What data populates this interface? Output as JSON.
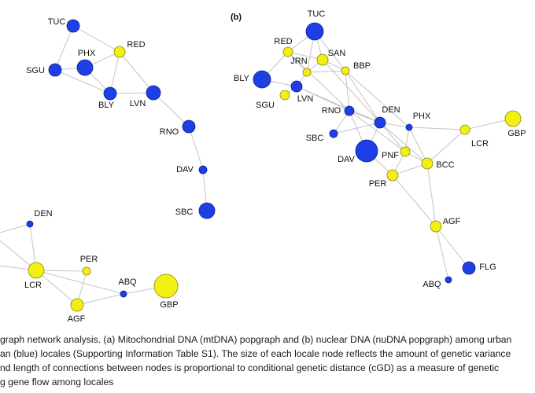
{
  "panels": [
    {
      "nodes": [
        {
          "label": "TUC",
          "color": "#1e3fe6"
        },
        {
          "label": "RED",
          "color": "#f4ef12"
        },
        {
          "label": "PHX",
          "color": "#1e3fe6"
        },
        {
          "label": "SGU",
          "color": "#1e3fe6"
        },
        {
          "label": "BLY",
          "color": "#1e3fe6"
        },
        {
          "label": "LVN",
          "color": "#1e3fe6"
        },
        {
          "label": "RNO",
          "color": "#1e3fe6"
        },
        {
          "label": "DAV",
          "color": "#1e3fe6"
        },
        {
          "label": "SBC",
          "color": "#1e3fe6"
        },
        {
          "label": "DEN",
          "color": "#1e3fe6"
        },
        {
          "label": "LCR",
          "color": "#f4ef12"
        },
        {
          "label": "PER",
          "color": "#f4ef12"
        },
        {
          "label": "ABQ",
          "color": "#1e3fe6"
        },
        {
          "label": "GBP",
          "color": "#f4ef12"
        },
        {
          "label": "AGF",
          "color": "#f4ef12"
        }
      ],
      "edges": [
        [
          0,
          3
        ],
        [
          0,
          1
        ],
        [
          1,
          2
        ],
        [
          2,
          3
        ],
        [
          3,
          4
        ],
        [
          2,
          4
        ],
        [
          1,
          4
        ],
        [
          1,
          5
        ],
        [
          4,
          5
        ],
        [
          5,
          6
        ],
        [
          6,
          7
        ],
        [
          7,
          8
        ],
        [
          9,
          10
        ],
        [
          10,
          11
        ],
        [
          10,
          14
        ],
        [
          11,
          14
        ],
        [
          14,
          12
        ],
        [
          10,
          12
        ],
        [
          12,
          13
        ]
      ]
    },
    {
      "label": "(b)",
      "nodes": [
        {
          "label": "TUC",
          "color": "#1e3fe6"
        },
        {
          "label": "RED",
          "color": "#f4ef12"
        },
        {
          "label": "SAN",
          "color": "#f4ef12"
        },
        {
          "label": "JRN",
          "color": "#f4ef12"
        },
        {
          "label": "BBP",
          "color": "#f4ef12"
        },
        {
          "label": "BLY",
          "color": "#1e3fe6"
        },
        {
          "label": "LVN",
          "color": "#1e3fe6"
        },
        {
          "label": "SGU",
          "color": "#f4ef12"
        },
        {
          "label": "RNO",
          "color": "#1e3fe6"
        },
        {
          "label": "DEN",
          "color": "#1e3fe6"
        },
        {
          "label": "PHX",
          "color": "#1e3fe6"
        },
        {
          "label": "LCR",
          "color": "#f4ef12"
        },
        {
          "label": "GBP",
          "color": "#f4ef12"
        },
        {
          "label": "SBC",
          "color": "#1e3fe6"
        },
        {
          "label": "DAV",
          "color": "#1e3fe6"
        },
        {
          "label": "PNF",
          "color": "#f4ef12"
        },
        {
          "label": "BCC",
          "color": "#f4ef12"
        },
        {
          "label": "PER",
          "color": "#f4ef12"
        },
        {
          "label": "AGF",
          "color": "#f4ef12"
        },
        {
          "label": "FLG",
          "color": "#1e3fe6"
        },
        {
          "label": "ABQ",
          "color": "#1e3fe6"
        }
      ],
      "edges": [
        [
          0,
          1
        ],
        [
          0,
          2
        ],
        [
          0,
          3
        ],
        [
          0,
          4
        ],
        [
          1,
          3
        ],
        [
          1,
          2
        ],
        [
          1,
          5
        ],
        [
          1,
          8
        ],
        [
          3,
          2
        ],
        [
          3,
          4
        ],
        [
          3,
          6
        ],
        [
          2,
          4
        ],
        [
          5,
          6
        ],
        [
          7,
          6
        ],
        [
          6,
          8
        ],
        [
          6,
          9
        ],
        [
          4,
          8
        ],
        [
          4,
          9
        ],
        [
          4,
          10
        ],
        [
          8,
          9
        ],
        [
          8,
          13
        ],
        [
          8,
          14
        ],
        [
          8,
          15
        ],
        [
          13,
          9
        ],
        [
          9,
          10
        ],
        [
          9,
          14
        ],
        [
          9,
          15
        ],
        [
          9,
          16
        ],
        [
          10,
          11
        ],
        [
          10,
          16
        ],
        [
          10,
          15
        ],
        [
          11,
          12
        ],
        [
          11,
          16
        ],
        [
          15,
          16
        ],
        [
          15,
          17
        ],
        [
          17,
          16
        ],
        [
          17,
          18
        ],
        [
          16,
          18
        ],
        [
          18,
          19
        ],
        [
          18,
          20
        ],
        [
          14,
          17
        ],
        [
          2,
          9
        ]
      ]
    }
  ],
  "caption": [
    "graph network analysis. (a) Mitochondrial DNA (mtDNA) popgraph and (b) nuclear DNA (nuDNA popgraph) among urban",
    "an (blue) locales (Supporting Information Table S1). The size of each locale node reflects the amount of genetic variance",
    "nd length of connections between nodes is proportional to conditional genetic distance (cGD) as a measure of genetic",
    "g gene flow among locales"
  ]
}
